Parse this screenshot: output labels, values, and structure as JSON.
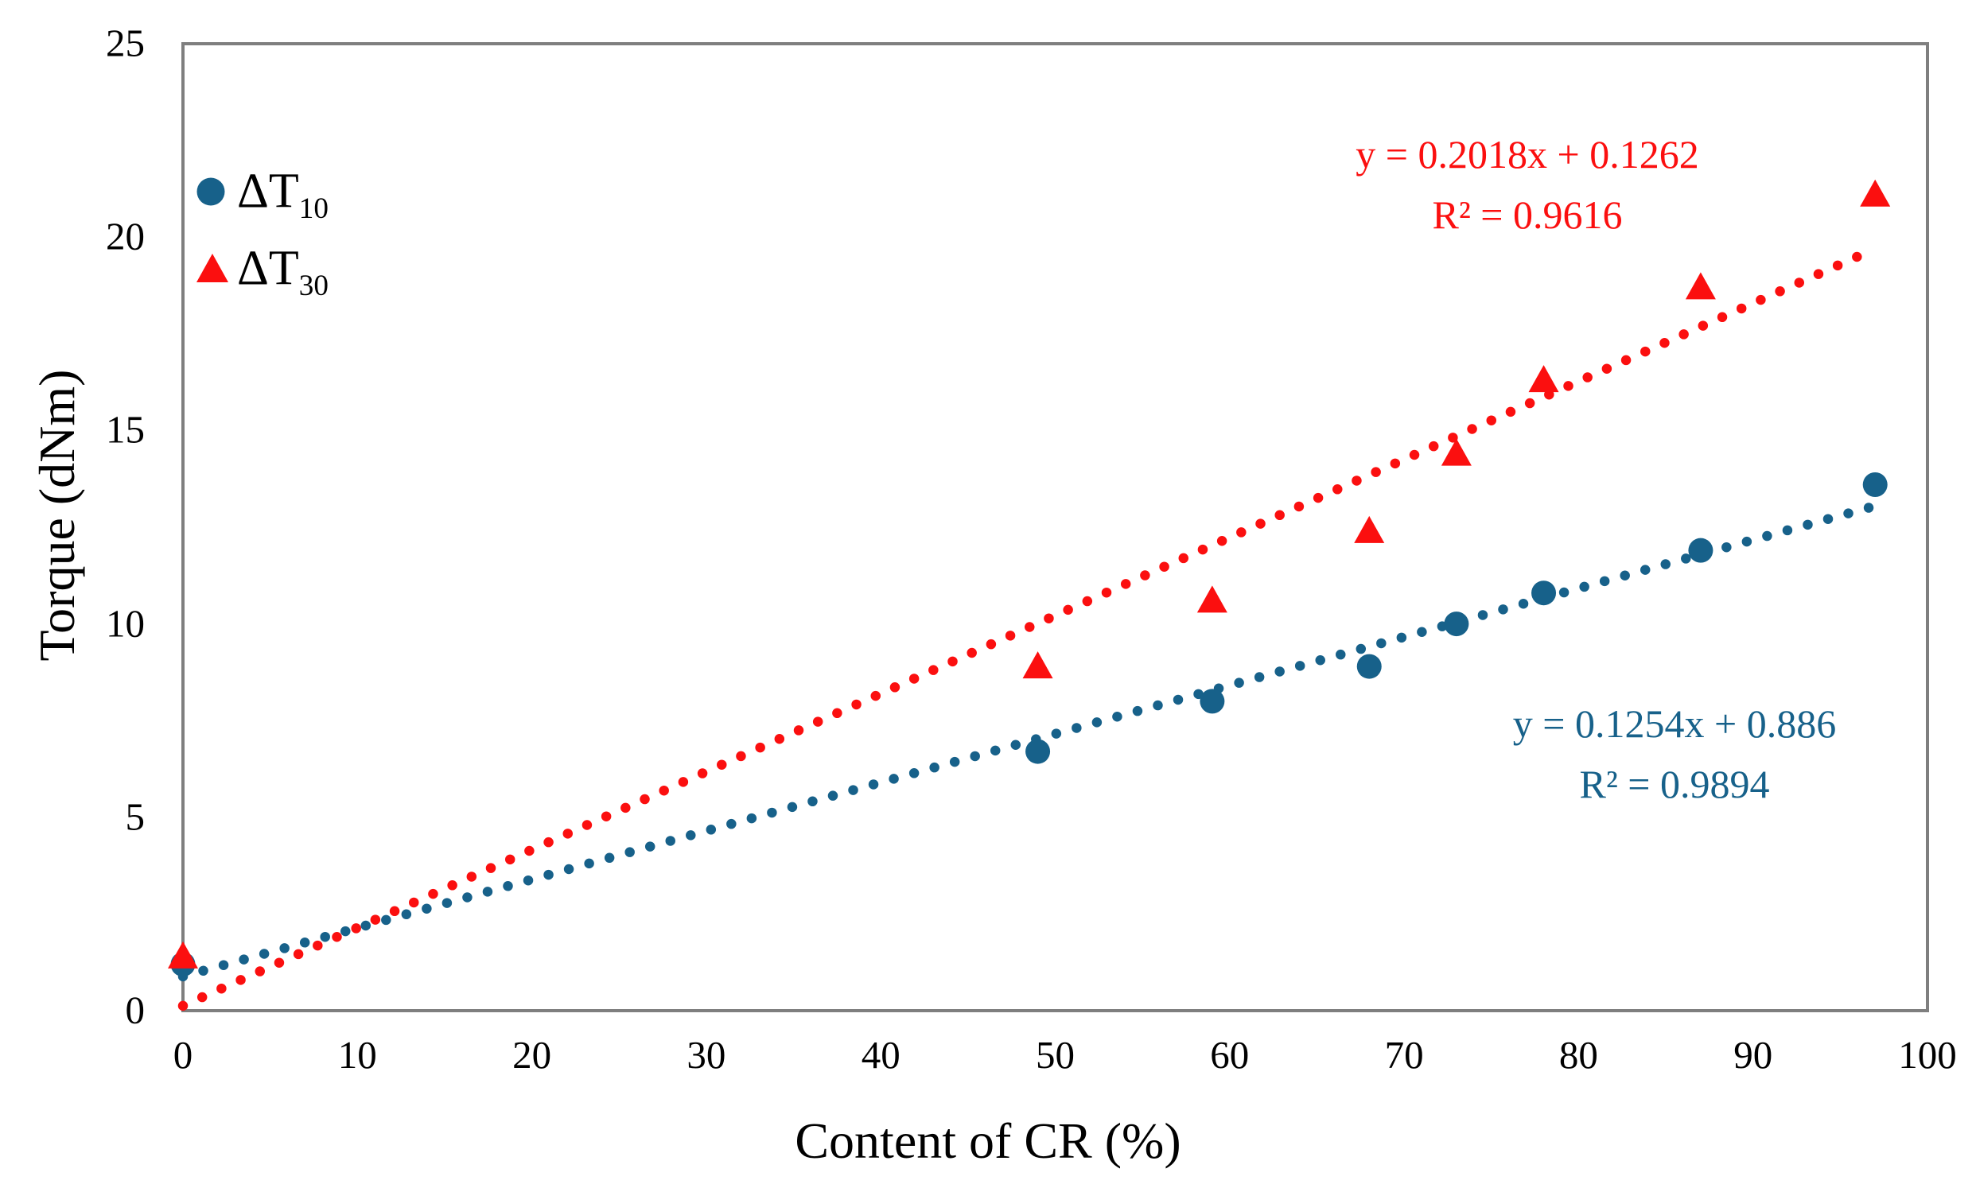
{
  "figure": {
    "background": "#ffffff"
  },
  "colors": {
    "series_dt10": "#17618A",
    "series_dt30": "#FB0F0F",
    "axis_border": "#7F7F7F",
    "text": "#000000"
  },
  "legend": {
    "items": [
      {
        "label": "ΔT",
        "sub": "10",
        "marker": "circle",
        "color": "#17618A"
      },
      {
        "label": "ΔT",
        "sub": "30",
        "marker": "triangle",
        "color": "#FB0F0F"
      }
    ]
  },
  "chart_data": {
    "type": "scatter",
    "title": "",
    "xlabel": "Content of CR (%)",
    "ylabel": "Torque (dNm)",
    "xlim": [
      0,
      100
    ],
    "ylim": [
      0,
      25
    ],
    "x_ticks": [
      0,
      10,
      20,
      30,
      40,
      50,
      60,
      70,
      80,
      90,
      100
    ],
    "y_ticks": [
      0,
      5,
      10,
      15,
      20,
      25
    ],
    "grid": false,
    "legend_position": "inside-top-left",
    "series": [
      {
        "name": "ΔT10",
        "marker": "circle",
        "color": "#17618A",
        "points": [
          [
            0,
            1.2
          ],
          [
            49,
            6.7
          ],
          [
            59,
            8.0
          ],
          [
            68,
            8.9
          ],
          [
            73,
            10.0
          ],
          [
            78,
            10.8
          ],
          [
            87,
            11.9
          ],
          [
            97,
            13.6
          ]
        ],
        "trendline": {
          "style": "dotted",
          "slope": 0.1254,
          "intercept": 0.886,
          "equation": "y = 0.1254x + 0.886",
          "r_squared": "R² = 0.9894"
        }
      },
      {
        "name": "ΔT30",
        "marker": "triangle",
        "color": "#FB0F0F",
        "points": [
          [
            0,
            1.4
          ],
          [
            49,
            8.9
          ],
          [
            59,
            10.6
          ],
          [
            68,
            12.4
          ],
          [
            73,
            14.4
          ],
          [
            78,
            16.3
          ],
          [
            87,
            18.7
          ],
          [
            97,
            21.1
          ]
        ],
        "trendline": {
          "style": "dotted",
          "slope": 0.2018,
          "intercept": 0.1262,
          "equation": "y = 0.2018x + 0.1262",
          "r_squared": "R² = 0.9616"
        }
      }
    ]
  }
}
